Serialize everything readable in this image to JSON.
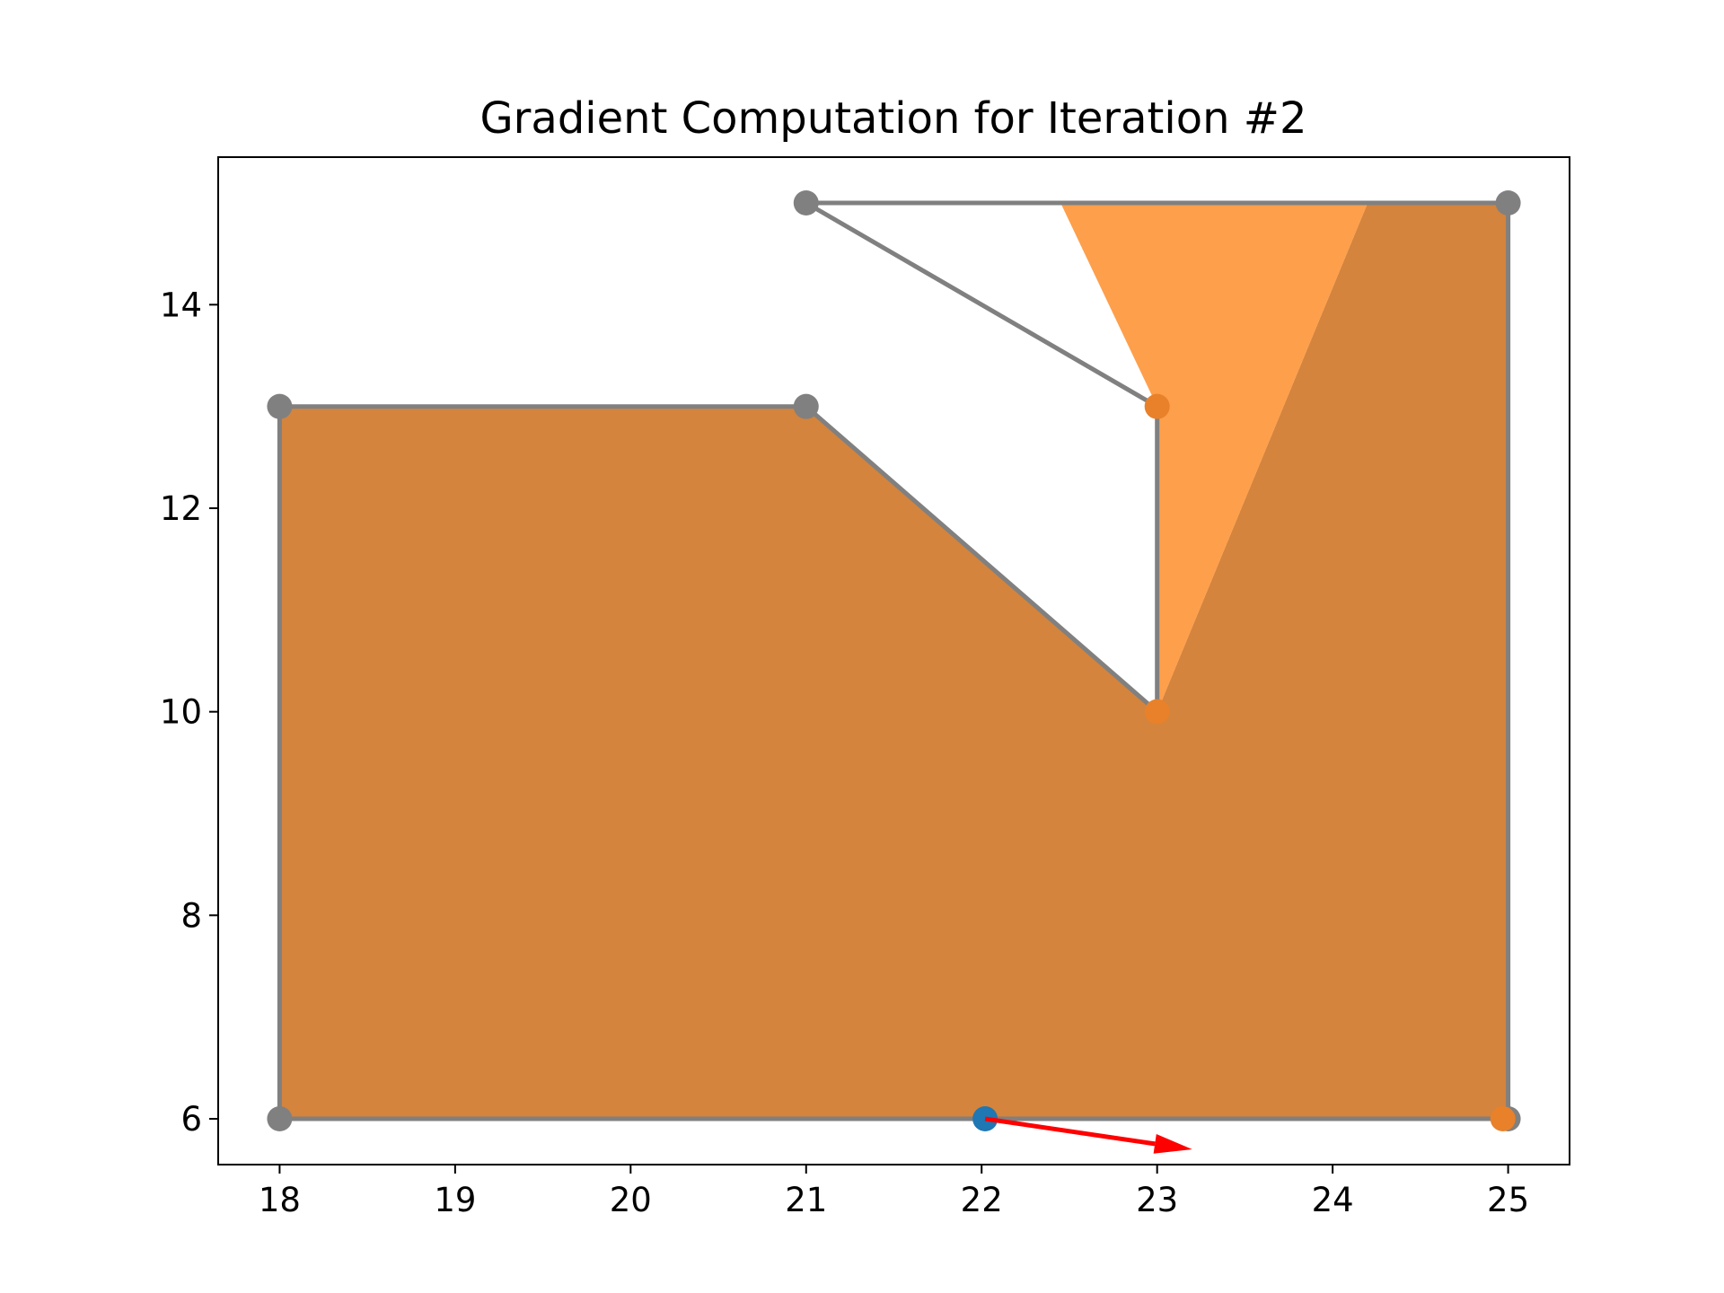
{
  "chart_data": {
    "type": "area",
    "title": "Gradient Computation for Iteration #2",
    "xlabel": "",
    "ylabel": "",
    "xlim": [
      17.65,
      25.35
    ],
    "ylim": [
      5.55,
      15.45
    ],
    "grid": false,
    "xticks": [
      18,
      19,
      20,
      21,
      22,
      23,
      24,
      25
    ],
    "yticks": [
      6,
      8,
      10,
      12,
      14
    ],
    "polygon_boundary": [
      [
        18,
        6
      ],
      [
        18,
        13
      ],
      [
        21,
        13
      ],
      [
        23,
        10
      ],
      [
        23,
        13
      ],
      [
        21,
        15
      ],
      [
        25,
        15
      ],
      [
        25,
        6
      ],
      [
        18,
        6
      ]
    ],
    "filled_regions": [
      {
        "color": "#D4843C",
        "points": [
          [
            18,
            6
          ],
          [
            18,
            13
          ],
          [
            21,
            13
          ],
          [
            23,
            10
          ],
          [
            24.2,
            15
          ],
          [
            25,
            15
          ],
          [
            25,
            6
          ]
        ]
      },
      {
        "color": "#FE9F4B",
        "points": [
          [
            22.45,
            15
          ],
          [
            24.2,
            15
          ],
          [
            23,
            10
          ],
          [
            23,
            13
          ]
        ]
      }
    ],
    "vertices_gray": [
      [
        18,
        6
      ],
      [
        18,
        13
      ],
      [
        21,
        13
      ],
      [
        21,
        15
      ],
      [
        25,
        15
      ],
      [
        25,
        6
      ]
    ],
    "vertices_orange": [
      [
        23,
        13
      ],
      [
        23,
        10
      ],
      [
        24.97,
        6
      ]
    ],
    "point_blue": [
      22.02,
      6
    ],
    "gradient_arrow": {
      "from": [
        22.02,
        6
      ],
      "to": [
        23.2,
        5.7
      ],
      "color": "#FF0000"
    },
    "colors": {
      "boundary": "#808080",
      "vertex_gray": "#808080",
      "vertex_orange": "#E8812A",
      "point_blue": "#1F77B4"
    }
  }
}
